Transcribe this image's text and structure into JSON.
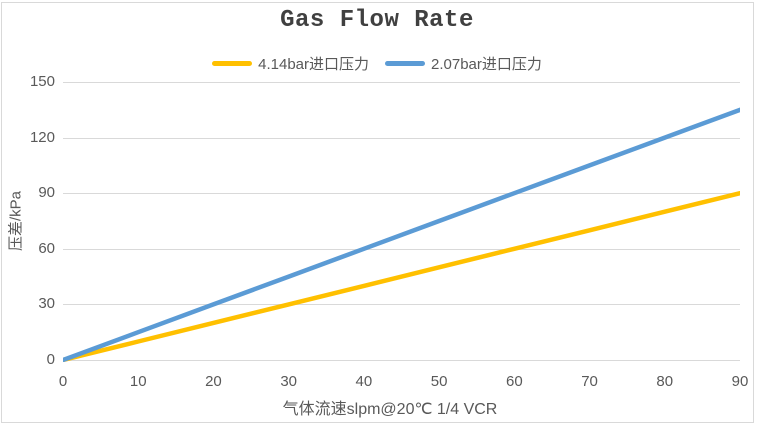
{
  "title": "Gas Flow Rate",
  "legend": [
    {
      "label": "4.14bar进口压力",
      "color": "#FFC000"
    },
    {
      "label": "2.07bar进口压力",
      "color": "#5B9BD5"
    }
  ],
  "y_axis": {
    "title": "压差/kPa",
    "ticks": [
      0,
      30,
      60,
      90,
      120,
      150
    ]
  },
  "x_axis": {
    "title": "气体流速slpm@20℃ 1/4 VCR",
    "ticks": [
      0,
      10,
      20,
      30,
      40,
      50,
      60,
      70,
      80,
      90
    ]
  },
  "chart_data": {
    "type": "line",
    "title": "Gas Flow Rate",
    "xlabel": "气体流速slpm@20℃ 1/4 VCR",
    "ylabel": "压差/kPa",
    "x": [
      0,
      10,
      20,
      30,
      40,
      50,
      60,
      70,
      80,
      90
    ],
    "series": [
      {
        "name": "4.14bar进口压力",
        "color": "#FFC000",
        "values": [
          0,
          10,
          20,
          30,
          40,
          50,
          60,
          70,
          80,
          90
        ]
      },
      {
        "name": "2.07bar进口压力",
        "color": "#5B9BD5",
        "values": [
          0,
          15,
          30,
          45,
          60,
          75,
          90,
          105,
          120,
          135
        ]
      }
    ],
    "xlim": [
      0,
      90
    ],
    "ylim": [
      0,
      150
    ],
    "grid": true,
    "legend_position": "top"
  },
  "colors": {
    "grid": "#D9D9D9",
    "frame_border": "#D9D9D9",
    "axis_text": "#595959",
    "title_text": "#404040",
    "background": "#FFFFFF"
  }
}
